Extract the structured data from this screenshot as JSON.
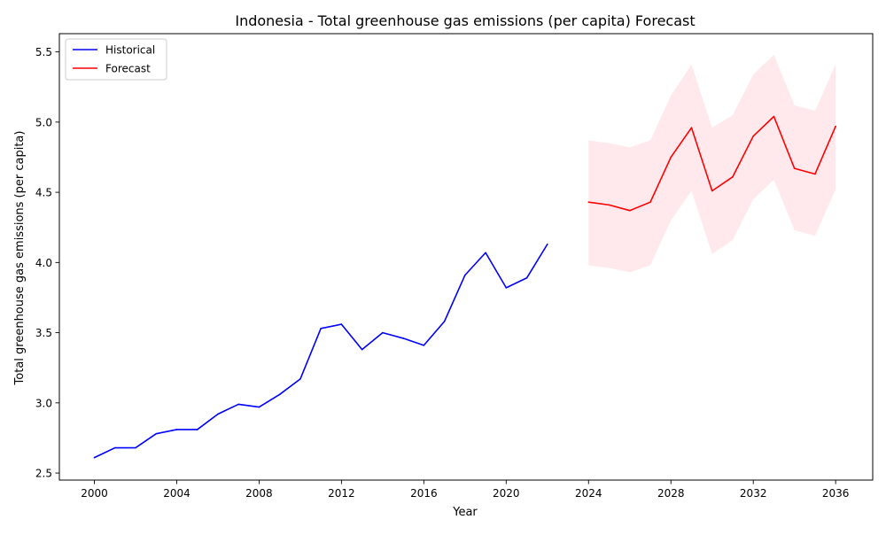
{
  "chart_data": {
    "type": "line",
    "title": "Indonesia - Total greenhouse gas emissions (per capita) Forecast",
    "xlabel": "Year",
    "ylabel": "Total greenhouse gas emissions (per capita)",
    "xlim": [
      1998.3,
      2037.8
    ],
    "ylim": [
      2.45,
      5.63
    ],
    "xticks": [
      2000,
      2004,
      2008,
      2012,
      2016,
      2020,
      2024,
      2028,
      2032,
      2036
    ],
    "xtick_labels": [
      "2000",
      "2004",
      "2008",
      "2012",
      "2016",
      "2020",
      "2024",
      "2028",
      "2032",
      "2036"
    ],
    "yticks": [
      2.5,
      3.0,
      3.5,
      4.0,
      4.5,
      5.0,
      5.5
    ],
    "ytick_labels": [
      "2.5",
      "3.0",
      "3.5",
      "4.0",
      "4.5",
      "5.0",
      "5.5"
    ],
    "grid": false,
    "legend_position": "upper-left",
    "series": [
      {
        "name": "Historical",
        "color": "#0000ff",
        "x": [
          2000,
          2001,
          2002,
          2003,
          2004,
          2005,
          2006,
          2007,
          2008,
          2009,
          2010,
          2011,
          2012,
          2013,
          2014,
          2015,
          2016,
          2017,
          2018,
          2019,
          2020,
          2021,
          2022
        ],
        "y": [
          2.61,
          2.68,
          2.68,
          2.78,
          2.81,
          2.81,
          2.92,
          2.99,
          2.97,
          3.06,
          3.17,
          3.53,
          3.56,
          3.38,
          3.5,
          3.46,
          3.41,
          3.58,
          3.91,
          4.07,
          3.82,
          3.89,
          4.13
        ]
      },
      {
        "name": "Forecast",
        "color": "#ff0000",
        "x": [
          2024,
          2025,
          2026,
          2027,
          2028,
          2029,
          2030,
          2031,
          2032,
          2033,
          2034,
          2035,
          2036
        ],
        "y": [
          4.43,
          4.41,
          4.37,
          4.43,
          4.75,
          4.96,
          4.51,
          4.61,
          4.9,
          5.04,
          4.67,
          4.63,
          4.97
        ],
        "lower": [
          3.98,
          3.96,
          3.93,
          3.98,
          4.3,
          4.51,
          4.06,
          4.16,
          4.45,
          4.59,
          4.23,
          4.19,
          4.52
        ],
        "upper": [
          4.87,
          4.85,
          4.82,
          4.87,
          5.19,
          5.41,
          4.96,
          5.05,
          5.34,
          5.48,
          5.12,
          5.08,
          5.41
        ],
        "band_color": "#ffc0cb"
      }
    ]
  }
}
